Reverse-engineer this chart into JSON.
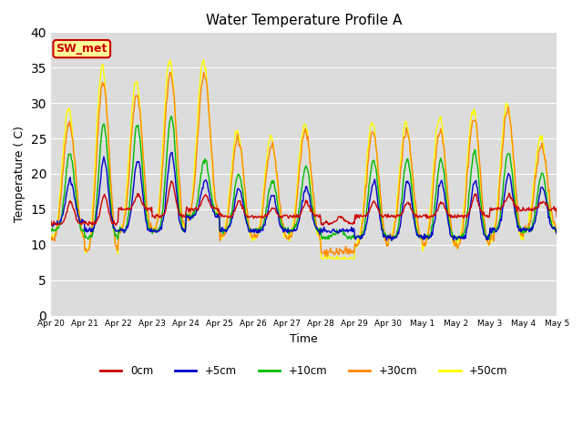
{
  "title": "Water Temperature Profile A",
  "xlabel": "Time",
  "ylabel": "Temperature ( C)",
  "ylim": [
    0,
    40
  ],
  "yticks": [
    0,
    5,
    10,
    15,
    20,
    25,
    30,
    35,
    40
  ],
  "bg_color": "#dcdcdc",
  "fig_color": "#ffffff",
  "annotation_text": "SW_met",
  "annotation_bg": "#ffff99",
  "annotation_border": "#cc0000",
  "annotation_text_color": "#cc0000",
  "line_colors": {
    "0cm": "#cc0000",
    "+5cm": "#0000cc",
    "+10cm": "#00bb00",
    "+30cm": "#ff8800",
    "+50cm": "#ffff00"
  },
  "tick_labels": [
    "Apr 20",
    "Apr 21",
    "Apr 22",
    "Apr 23",
    "Apr 24",
    "Apr 25",
    "Apr 26",
    "Apr 27",
    "Apr 28",
    "Apr 29",
    "Apr 30",
    "May 1",
    "May 2",
    "May 3",
    "May 4",
    "May 5"
  ],
  "n_points": 720
}
